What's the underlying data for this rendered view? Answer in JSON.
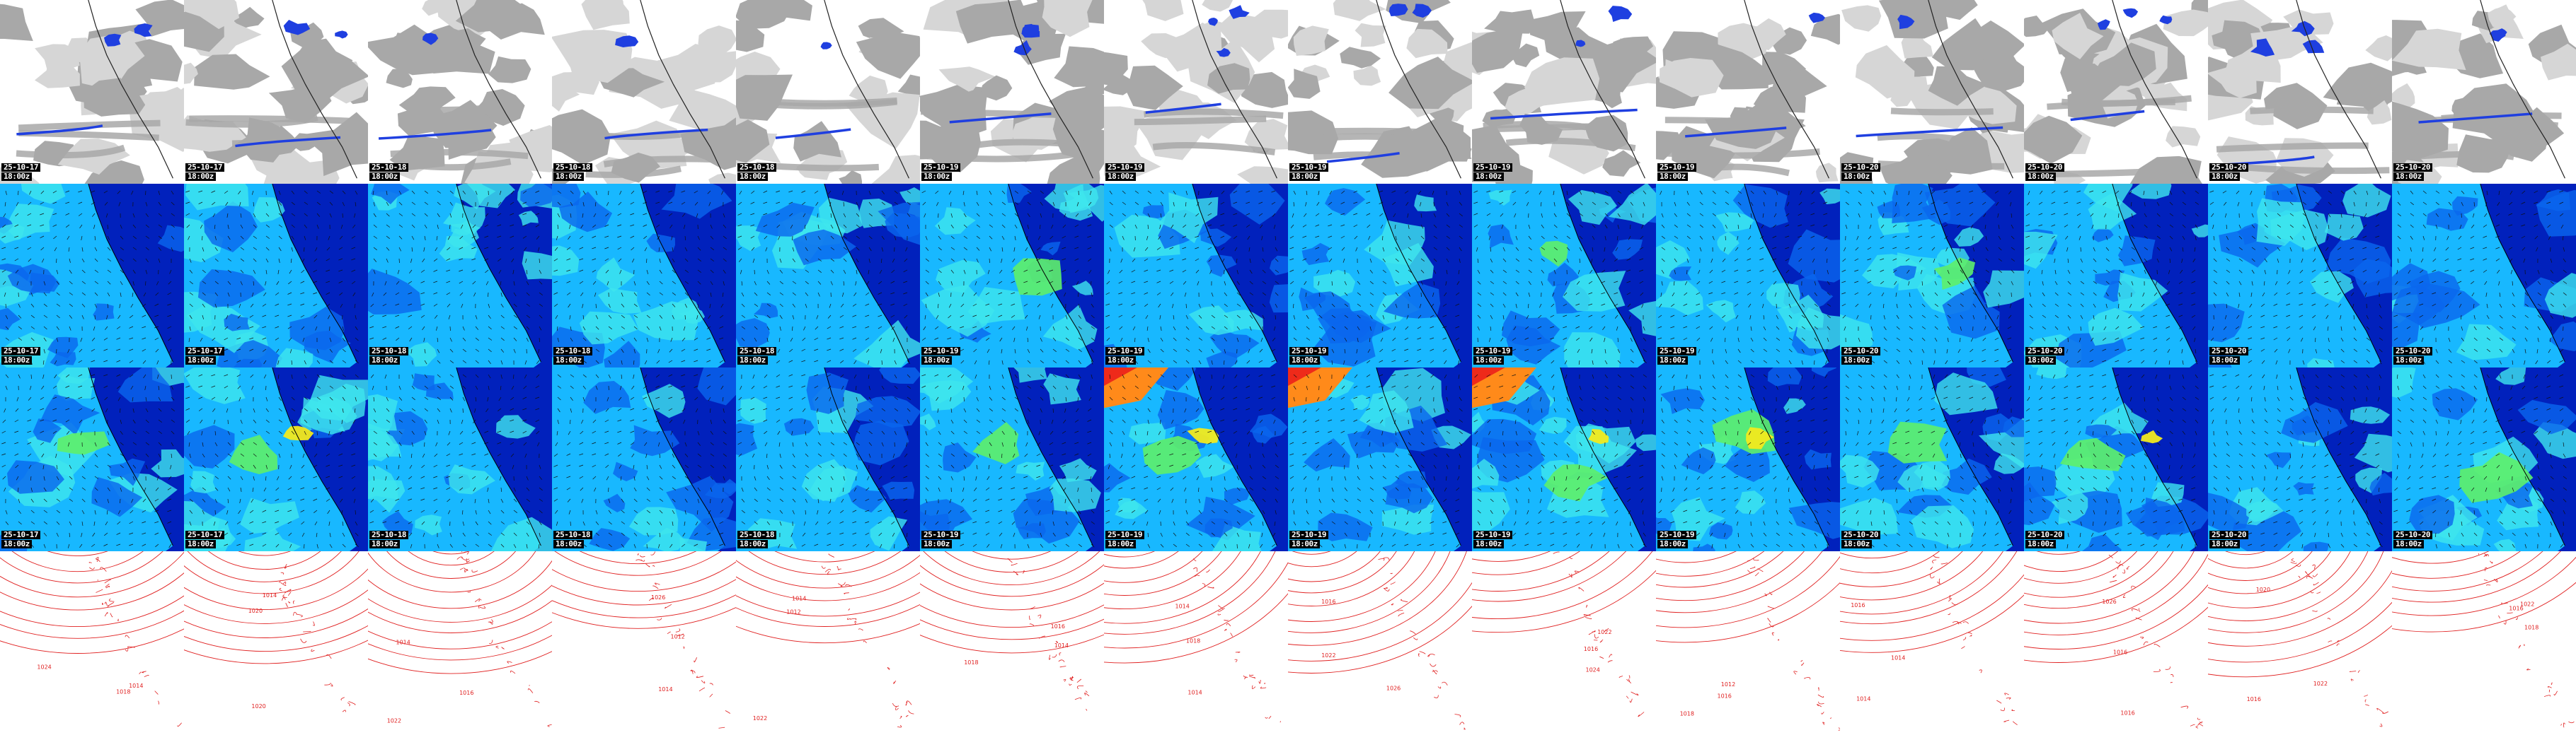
{
  "layout": {
    "columns": 14,
    "rows": 4
  },
  "frames": [
    {
      "date": "25-10-17",
      "time": "18:00z"
    },
    {
      "date": "25-10-17",
      "time": "18:00z"
    },
    {
      "date": "25-10-18",
      "time": "18:00z"
    },
    {
      "date": "25-10-18",
      "time": "18:00z"
    },
    {
      "date": "25-10-18",
      "time": "18:00z"
    },
    {
      "date": "25-10-19",
      "time": "18:00z"
    },
    {
      "date": "25-10-19",
      "time": "18:00z"
    },
    {
      "date": "25-10-19",
      "time": "18:00z"
    },
    {
      "date": "25-10-19",
      "time": "18:00z"
    },
    {
      "date": "25-10-19",
      "time": "18:00z"
    },
    {
      "date": "25-10-20",
      "time": "18:00z"
    },
    {
      "date": "25-10-20",
      "time": "18:00z"
    },
    {
      "date": "25-10-20",
      "time": "18:00z"
    },
    {
      "date": "25-10-20",
      "time": "18:00z"
    }
  ],
  "rows": [
    {
      "id": "clouds-precip",
      "kind": "cloud",
      "show_timestamp": true,
      "colors": {
        "bg": "#ffffff",
        "cloud": "#a8a8a8",
        "cloud_light": "#d6d6d6",
        "precip": "#1f3fe0",
        "coast": "#222222"
      }
    },
    {
      "id": "wind-speed-a",
      "kind": "wind",
      "show_timestamp": true,
      "colors": {
        "dark": "#0018b8",
        "mid": "#0a66ee",
        "light": "#18b8ff",
        "cyan": "#3fe6ee",
        "green": "#5ef06a",
        "yellow": "#f2ea1e",
        "orange": "#ff8a1a",
        "red": "#ee2a1a",
        "arrow": "#101010"
      }
    },
    {
      "id": "wind-speed-b",
      "kind": "wind",
      "show_timestamp": true,
      "colors": {
        "dark": "#0018b8",
        "mid": "#0a66ee",
        "light": "#18b8ff",
        "cyan": "#3fe6ee",
        "green": "#5ef06a",
        "yellow": "#f2ea1e",
        "orange": "#ff8a1a",
        "red": "#ee2a1a",
        "arrow": "#101010"
      }
    },
    {
      "id": "pressure-isobars",
      "kind": "isobar",
      "show_timestamp": false,
      "colors": {
        "bg": "#ffffff",
        "line": "#e02020",
        "label": "#e02020"
      },
      "isobar_labels": [
        "1012",
        "1014",
        "1016",
        "1018",
        "1020",
        "1022",
        "1024",
        "1026"
      ]
    }
  ]
}
